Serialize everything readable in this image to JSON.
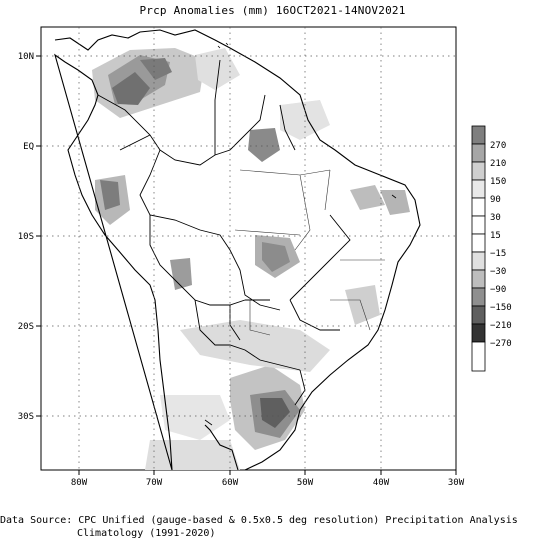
{
  "map": {
    "title": "Prcp Anomalies (mm) 16OCT2021-14NOV2021",
    "lat_labels": [
      "10N",
      "EQ",
      "10S",
      "20S",
      "30S"
    ],
    "lon_labels": [
      "80W",
      "70W",
      "60W",
      "50W",
      "40W",
      "30W"
    ],
    "lat_range": [
      -36,
      12
    ],
    "lon_range": [
      -85,
      -30
    ],
    "grid": "dotted",
    "colors": {
      "anom_pos_high": "#8a8a8a",
      "anom_pos_mid": "#b5b5b5",
      "anom_pos_low": "#d9d9d9",
      "neg_low": "#cfcfcf",
      "neg_mid": "#9a9a9a",
      "neg_high": "#5a5a5a",
      "land_outline": "#000000"
    }
  },
  "legend": {
    "labels": [
      "270",
      "210",
      "150",
      "90",
      "30",
      "15",
      "−15",
      "−30",
      "−90",
      "−150",
      "−210",
      "−270"
    ],
    "colors": [
      "#7f7f7f",
      "#a6a6a6",
      "#cfcfcf",
      "#e9e9e9",
      "#ffffff",
      "#ffffff",
      "#ffffff",
      "#e0e0e0",
      "#bdbdbd",
      "#8f8f8f",
      "#5f5f5f",
      "#333333",
      "#ffffff"
    ]
  },
  "footer": {
    "line1": "Data Source: CPC Unified (gauge-based & 0.5x0.5 deg resolution) Precipitation Analysis",
    "line2": "Climatology (1991-2020)"
  }
}
